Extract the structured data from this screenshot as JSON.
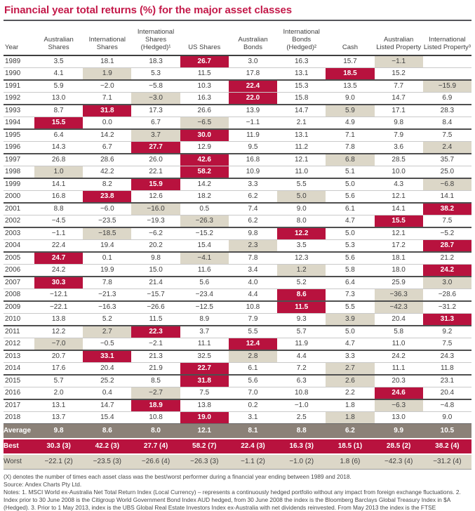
{
  "title": "Financial year total returns (%) for the major asset classes",
  "colors": {
    "title": "#C41A4A",
    "best_highlight": "#B8123E",
    "worst_highlight": "#DCD7C8",
    "average_row": "#8B8178"
  },
  "table": {
    "columns": [
      "Year",
      "Australian Shares",
      "International Shares",
      "International Shares (Hedged)¹",
      "US Shares",
      "Australian Bonds",
      "International Bonds (Hedged)²",
      "Cash",
      "Australian Listed Property",
      "International Listed Property³"
    ],
    "rows": [
      {
        "year": "1989",
        "values": [
          "3.5",
          "18.1",
          "18.3",
          "26.7",
          "3.0",
          "16.3",
          "15.7",
          "−1.1",
          ""
        ],
        "best": 3,
        "worst": 7
      },
      {
        "year": "1990",
        "values": [
          "4.1",
          "1.9",
          "5.3",
          "11.5",
          "17.8",
          "13.1",
          "18.5",
          "15.2",
          ""
        ],
        "best": 6,
        "worst": 1
      },
      {
        "year": "1991",
        "values": [
          "5.9",
          "−2.0",
          "−5.8",
          "10.3",
          "22.4",
          "15.3",
          "13.5",
          "7.7",
          "−15.9"
        ],
        "best": 4,
        "worst": 8
      },
      {
        "year": "1992",
        "values": [
          "13.0",
          "7.1",
          "−3.0",
          "16.3",
          "22.0",
          "15.8",
          "9.0",
          "14.7",
          "6.9"
        ],
        "best": 4,
        "worst": 2
      },
      {
        "year": "1993",
        "values": [
          "8.7",
          "31.8",
          "17.3",
          "26.6",
          "13.9",
          "14.7",
          "5.9",
          "17.1",
          "28.3"
        ],
        "best": 1,
        "worst": 6
      },
      {
        "year": "1994",
        "values": [
          "15.5",
          "0.0",
          "6.7",
          "−6.5",
          "−1.1",
          "2.1",
          "4.9",
          "9.8",
          "8.4"
        ],
        "best": 0,
        "worst": 3
      },
      {
        "year": "1995",
        "values": [
          "6.4",
          "14.2",
          "3.7",
          "30.0",
          "11.9",
          "13.1",
          "7.1",
          "7.9",
          "7.5"
        ],
        "best": 3,
        "worst": 2
      },
      {
        "year": "1996",
        "values": [
          "14.3",
          "6.7",
          "27.7",
          "12.9",
          "9.5",
          "11.2",
          "7.8",
          "3.6",
          "2.4"
        ],
        "best": 2,
        "worst": 8
      },
      {
        "year": "1997",
        "values": [
          "26.8",
          "28.6",
          "26.0",
          "42.6",
          "16.8",
          "12.1",
          "6.8",
          "28.5",
          "35.7"
        ],
        "best": 3,
        "worst": 6
      },
      {
        "year": "1998",
        "values": [
          "1.0",
          "42.2",
          "22.1",
          "58.2",
          "10.9",
          "11.0",
          "5.1",
          "10.0",
          "25.0"
        ],
        "best": 3,
        "worst": 0
      },
      {
        "year": "1999",
        "values": [
          "14.1",
          "8.2",
          "15.9",
          "14.2",
          "3.3",
          "5.5",
          "5.0",
          "4.3",
          "−6.8"
        ],
        "best": 2,
        "worst": 8
      },
      {
        "year": "2000",
        "values": [
          "16.8",
          "23.8",
          "12.6",
          "18.2",
          "6.2",
          "5.0",
          "5.6",
          "12.1",
          "14.1"
        ],
        "best": 1,
        "worst": 5
      },
      {
        "year": "2001",
        "values": [
          "8.8",
          "−6.0",
          "−16.0",
          "0.5",
          "7.4",
          "9.0",
          "6.1",
          "14.1",
          "38.2"
        ],
        "best": 8,
        "worst": 2
      },
      {
        "year": "2002",
        "values": [
          "−4.5",
          "−23.5",
          "−19.3",
          "−26.3",
          "6.2",
          "8.0",
          "4.7",
          "15.5",
          "7.5"
        ],
        "best": 7,
        "worst": 3
      },
      {
        "year": "2003",
        "values": [
          "−1.1",
          "−18.5",
          "−6.2",
          "−15.2",
          "9.8",
          "12.2",
          "5.0",
          "12.1",
          "−5.2"
        ],
        "best": 5,
        "worst": 1
      },
      {
        "year": "2004",
        "values": [
          "22.4",
          "19.4",
          "20.2",
          "15.4",
          "2.3",
          "3.5",
          "5.3",
          "17.2",
          "28.7"
        ],
        "best": 8,
        "worst": 4
      },
      {
        "year": "2005",
        "values": [
          "24.7",
          "0.1",
          "9.8",
          "−4.1",
          "7.8",
          "12.3",
          "5.6",
          "18.1",
          "21.2"
        ],
        "best": 0,
        "worst": 3
      },
      {
        "year": "2006",
        "values": [
          "24.2",
          "19.9",
          "15.0",
          "11.6",
          "3.4",
          "1.2",
          "5.8",
          "18.0",
          "24.2"
        ],
        "best": 8,
        "worst": 5
      },
      {
        "year": "2007",
        "values": [
          "30.3",
          "7.8",
          "21.4",
          "5.6",
          "4.0",
          "5.2",
          "6.4",
          "25.9",
          "3.0"
        ],
        "best": 0,
        "worst": 8
      },
      {
        "year": "2008",
        "values": [
          "−12.1",
          "−21.3",
          "−15.7",
          "−23.4",
          "4.4",
          "8.6",
          "7.3",
          "−36.3",
          "−28.6"
        ],
        "best": 5,
        "worst": 7
      },
      {
        "year": "2009",
        "values": [
          "−22.1",
          "−16.3",
          "−26.6",
          "−12.5",
          "10.8",
          "11.5",
          "5.5",
          "−42.3",
          "−31.2"
        ],
        "best": 5,
        "worst": 7
      },
      {
        "year": "2010",
        "values": [
          "13.8",
          "5.2",
          "11.5",
          "8.9",
          "7.9",
          "9.3",
          "3.9",
          "20.4",
          "31.3"
        ],
        "best": 8,
        "worst": 6
      },
      {
        "year": "2011",
        "values": [
          "12.2",
          "2.7",
          "22.3",
          "3.7",
          "5.5",
          "5.7",
          "5.0",
          "5.8",
          "9.2"
        ],
        "best": 2,
        "worst": 1
      },
      {
        "year": "2012",
        "values": [
          "−7.0",
          "−0.5",
          "−2.1",
          "11.1",
          "12.4",
          "11.9",
          "4.7",
          "11.0",
          "7.5"
        ],
        "best": 4,
        "worst": 0
      },
      {
        "year": "2013",
        "values": [
          "20.7",
          "33.1",
          "21.3",
          "32.5",
          "2.8",
          "4.4",
          "3.3",
          "24.2",
          "24.3"
        ],
        "best": 1,
        "worst": 4
      },
      {
        "year": "2014",
        "values": [
          "17.6",
          "20.4",
          "21.9",
          "22.7",
          "6.1",
          "7.2",
          "2.7",
          "11.1",
          "11.8"
        ],
        "best": 3,
        "worst": 6
      },
      {
        "year": "2015",
        "values": [
          "5.7",
          "25.2",
          "8.5",
          "31.8",
          "5.6",
          "6.3",
          "2.6",
          "20.3",
          "23.1"
        ],
        "best": 3,
        "worst": 6
      },
      {
        "year": "2016",
        "values": [
          "2.0",
          "0.4",
          "−2.7",
          "7.5",
          "7.0",
          "10.8",
          "2.2",
          "24.6",
          "20.4"
        ],
        "best": 7,
        "worst": 2
      },
      {
        "year": "2017",
        "values": [
          "13.1",
          "14.7",
          "18.9",
          "13.8",
          "0.2",
          "−1.0",
          "1.8",
          "−6.3",
          "−4.8"
        ],
        "best": 2,
        "worst": 7
      },
      {
        "year": "2018",
        "values": [
          "13.7",
          "15.4",
          "10.8",
          "19.0",
          "3.1",
          "2.5",
          "1.8",
          "13.0",
          "9.0"
        ],
        "best": 3,
        "worst": 6
      }
    ],
    "summary": [
      {
        "label": "Average",
        "type": "avg",
        "values": [
          "9.8",
          "8.6",
          "8.0",
          "12.1",
          "8.1",
          "8.8",
          "6.2",
          "9.9",
          "10.5"
        ]
      },
      {
        "label": "Best",
        "type": "best-row",
        "values": [
          "30.3 (3)",
          "42.2 (3)",
          "27.7 (4)",
          "58.2 (7)",
          "22.4 (3)",
          "16.3 (3)",
          "18.5 (1)",
          "28.5 (2)",
          "38.2 (4)"
        ]
      },
      {
        "label": "Worst",
        "type": "worst-row",
        "values": [
          "−22.1 (2)",
          "−23.5 (3)",
          "−26.6 (4)",
          "−26.3 (3)",
          "−1.1 (2)",
          "−1.0 (2)",
          "1.8 (6)",
          "−42.3 (4)",
          "−31.2 (4)"
        ]
      }
    ]
  },
  "footnotes": {
    "denotes": "(X) denotes the number of times each asset class was the best/worst performer during a financial year ending between 1989 and 2018.",
    "source": "Source: Andex Charts Pty Ltd.",
    "notes": "Notes: 1. MSCI World ex-Australia Net Total Return Index (Local Currency) – represents a continuously hedged portfolio without any impact from foreign exchange fluctuations. 2. Index prior to 30 June 2008 is the Citigroup World Government Bond Index AUD hedged, from 30 June 2008 the index is the Bloomberg Barclays Global Treasury Index in $A (Hedged).  3. Prior to 1 May 2013, index is the UBS Global Real Estate Investors Index ex-Australia with net dividends reinvested. From May 2013 the index is the FTSE EPRA/NAREIT Developed ex AUS Rental Index with net dividends reinvested. Past performance is not an indicator of future performance."
  }
}
